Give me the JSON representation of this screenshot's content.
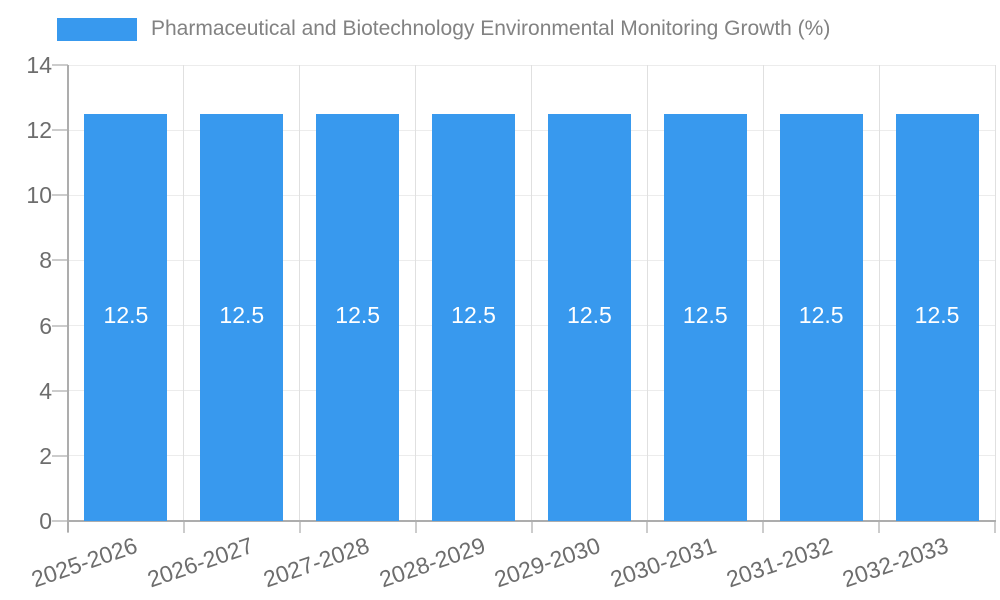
{
  "legend": {
    "label": "Pharmaceutical and Biotechnology Environmental Monitoring Growth (%)"
  },
  "chart_data": {
    "type": "bar",
    "title": "Pharmaceutical and Biotechnology Environmental Monitoring Growth (%)",
    "categories": [
      "2025-2026",
      "2026-2027",
      "2027-2028",
      "2028-2029",
      "2029-2030",
      "2030-2031",
      "2031-2032",
      "2032-2033"
    ],
    "values": [
      12.5,
      12.5,
      12.5,
      12.5,
      12.5,
      12.5,
      12.5,
      12.5
    ],
    "bar_labels": [
      "12.5",
      "12.5",
      "12.5",
      "12.5",
      "12.5",
      "12.5",
      "12.5",
      "12.5"
    ],
    "xlabel": "",
    "ylabel": "",
    "ylim": [
      0,
      14
    ],
    "yticks": [
      0,
      2,
      4,
      6,
      8,
      10,
      12,
      14
    ],
    "grid": true,
    "legend_position": "top",
    "colors": {
      "bar": "#3899ee",
      "bar_label": "#ffffff",
      "title": "#828282",
      "tick_label": "#6d6d6d",
      "grid_horizontal": "#ececec",
      "grid_vertical": "#e0e0e0",
      "axis_line": "#adadad",
      "tick_mark": "#cccccc",
      "background": "#ffffff"
    }
  }
}
